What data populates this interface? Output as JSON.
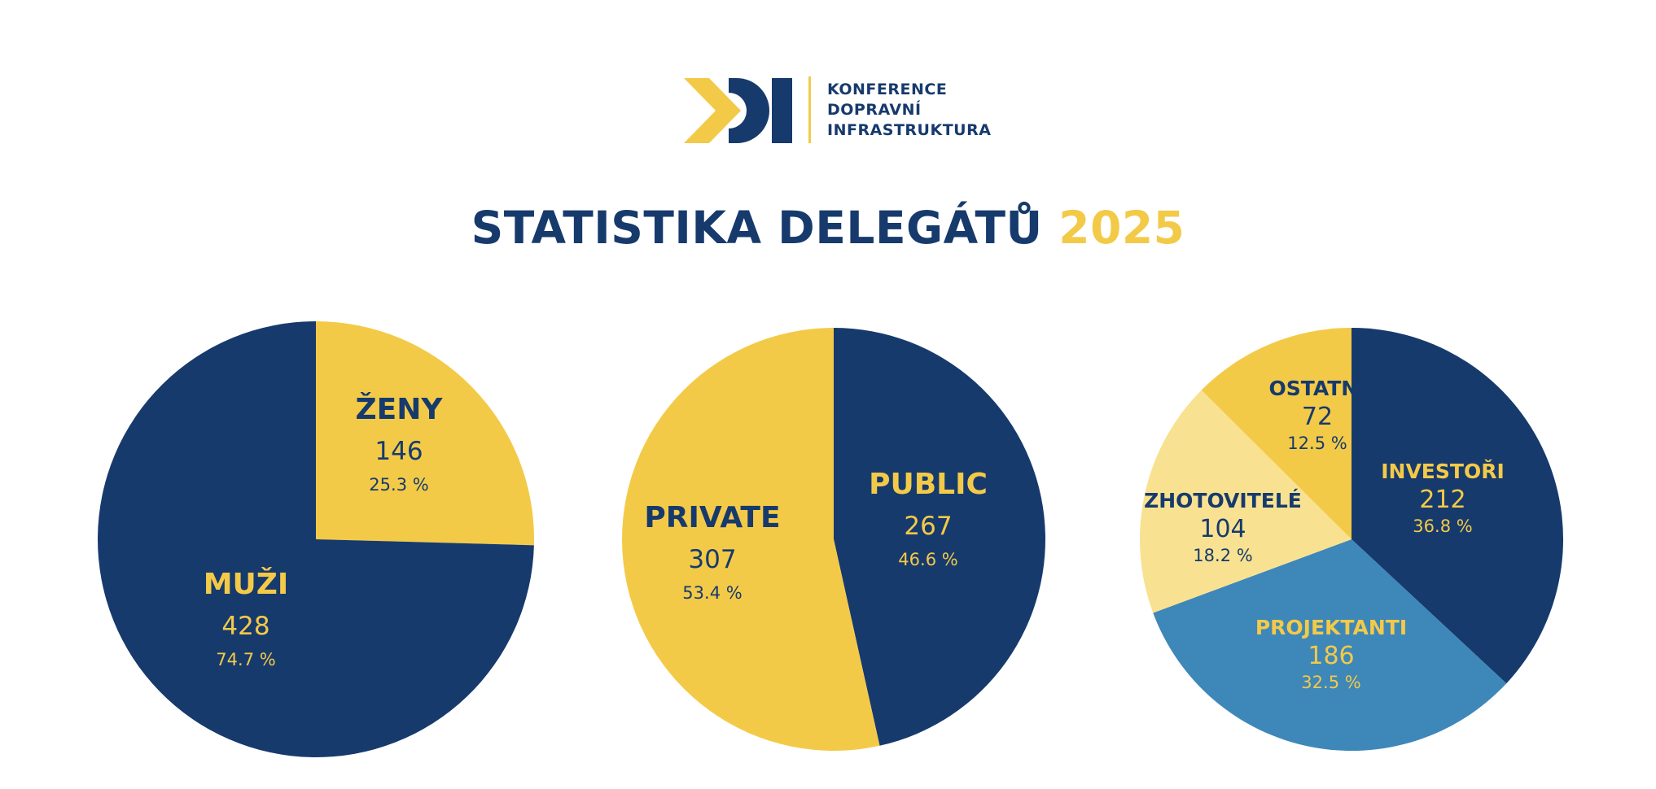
{
  "header": {
    "logo_lines": [
      "KONFERENCE",
      "DOPRAVNÍ",
      "INFRASTRUKTURA"
    ],
    "title": "STATISTIKA DELEGÁTŮ",
    "title_year": "2025"
  },
  "colors": {
    "navy": "#173a6d",
    "yellow": "#f3ca48",
    "light_yellow": "#f8e291",
    "blue": "#3e87b9"
  },
  "chart_data": [
    {
      "type": "pie",
      "slices": [
        {
          "label": "ŽENY",
          "value": 146,
          "percent": "25.3 %",
          "color": "#f3ca48"
        },
        {
          "label": "MUŽI",
          "value": 428,
          "percent": "74.7 %",
          "color": "#173a6d"
        }
      ]
    },
    {
      "type": "pie",
      "slices": [
        {
          "label": "PUBLIC",
          "value": 267,
          "percent": "46.6 %",
          "color": "#173a6d"
        },
        {
          "label": "PRIVATE",
          "value": 307,
          "percent": "53.4 %",
          "color": "#f3ca48"
        }
      ]
    },
    {
      "type": "pie",
      "slices": [
        {
          "label": "INVESTOŘI",
          "value": 212,
          "percent": "36.8 %",
          "color": "#173a6d"
        },
        {
          "label": "PROJEKTANTI",
          "value": 186,
          "percent": "32.5 %",
          "color": "#3e87b9"
        },
        {
          "label": "ZHOTOVITELÉ",
          "value": 104,
          "percent": "18.2 %",
          "color": "#f8e291"
        },
        {
          "label": "OSTATNÍ",
          "value": 72,
          "percent": "12.5 %",
          "color": "#f3ca48"
        }
      ]
    }
  ]
}
